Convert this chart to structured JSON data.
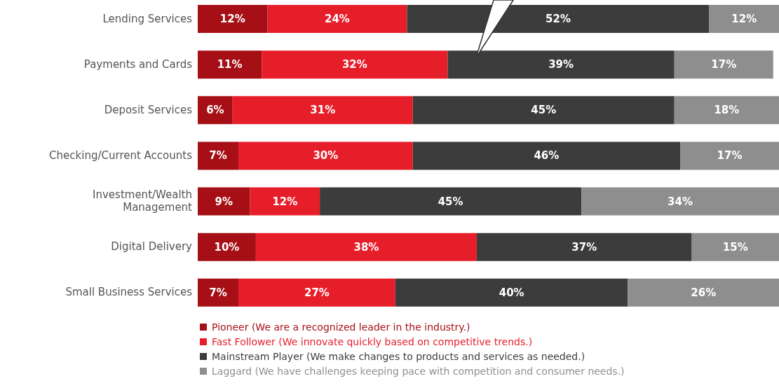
{
  "chart_data": {
    "type": "bar",
    "orientation": "horizontal",
    "stacked": true,
    "xlim": [
      0,
      100
    ],
    "legend": "bottom",
    "grid": false,
    "categories": [
      "Lending Services",
      "Payments and Cards",
      "Deposit Services",
      "Checking/Current Accounts",
      "Investment/Wealth Management",
      "Digital Delivery",
      "Small Business Services"
    ],
    "series": [
      {
        "name": "Pioneer (We are a recognized leader in the industry.)",
        "color": "#a50f15",
        "values": [
          12,
          11,
          6,
          7,
          9,
          10,
          7
        ],
        "value_labels": [
          "12%",
          "11%",
          "6%",
          "7%",
          "9%",
          "10%",
          "7%"
        ]
      },
      {
        "name": "Fast Follower (We innovate quickly based on competitive trends.)",
        "color": "#e61e2a",
        "values": [
          24,
          32,
          31,
          30,
          12,
          38,
          27
        ],
        "value_labels": [
          "24%",
          "32%",
          "31%",
          "30%",
          "12%",
          "38%",
          "27%"
        ]
      },
      {
        "name": "Mainstream Player (We make changes to products and services as needed.)",
        "color": "#3c3c3c",
        "values": [
          52,
          39,
          45,
          46,
          45,
          37,
          40
        ],
        "value_labels": [
          "52%",
          "39%",
          "45%",
          "46%",
          "45%",
          "37%",
          "40%"
        ]
      },
      {
        "name": "Laggard (We have challenges keeping pace with competition and consumer needs.)",
        "color": "#8e8e8e",
        "values": [
          12,
          17,
          18,
          17,
          34,
          15,
          26
        ],
        "value_labels": [
          "12%",
          "17%",
          "18%",
          "17%",
          "34%",
          "15%",
          "26%"
        ]
      }
    ]
  }
}
